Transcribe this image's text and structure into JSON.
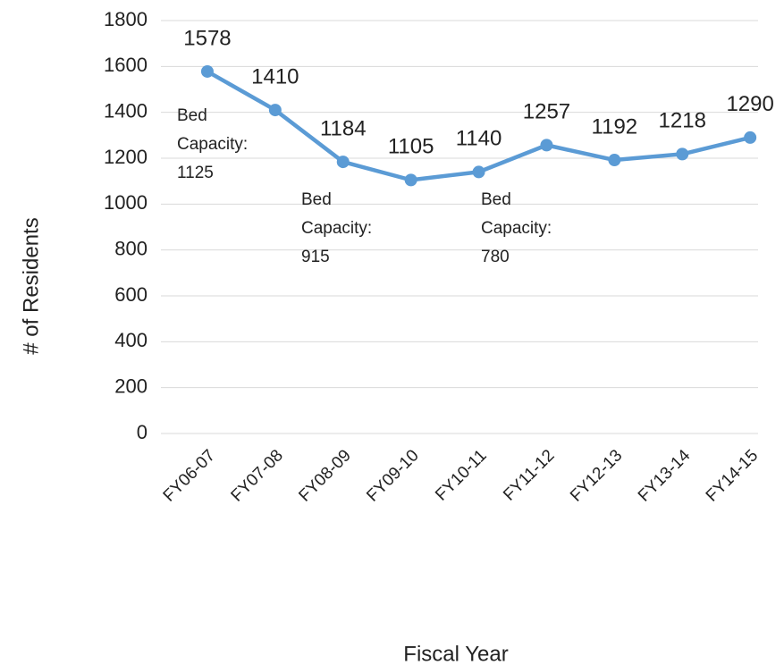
{
  "chart_data": {
    "type": "line",
    "x_label": "Fiscal Year",
    "y_label": "# of Residents",
    "categories": [
      "FY06-07",
      "FY07-08",
      "FY08-09",
      "FY09-10",
      "FY10-11",
      "FY11-12",
      "FY12-13",
      "FY13-14",
      "FY14-15"
    ],
    "series": [
      {
        "name": "Residents",
        "color": "#5b9bd5",
        "values": [
          1578,
          1410,
          1184,
          1105,
          1140,
          1257,
          1192,
          1218,
          1290
        ]
      }
    ],
    "ylim": [
      0,
      1800
    ],
    "yticks": [
      0,
      200,
      400,
      600,
      800,
      1000,
      1200,
      1400,
      1600,
      1800
    ],
    "grid": true,
    "annotations": [
      {
        "lines": [
          "Bed",
          "Capacity:",
          "1125"
        ]
      },
      {
        "lines": [
          "Bed",
          "Capacity:",
          "915"
        ]
      },
      {
        "lines": [
          "Bed",
          "Capacity:",
          "780"
        ]
      }
    ]
  }
}
